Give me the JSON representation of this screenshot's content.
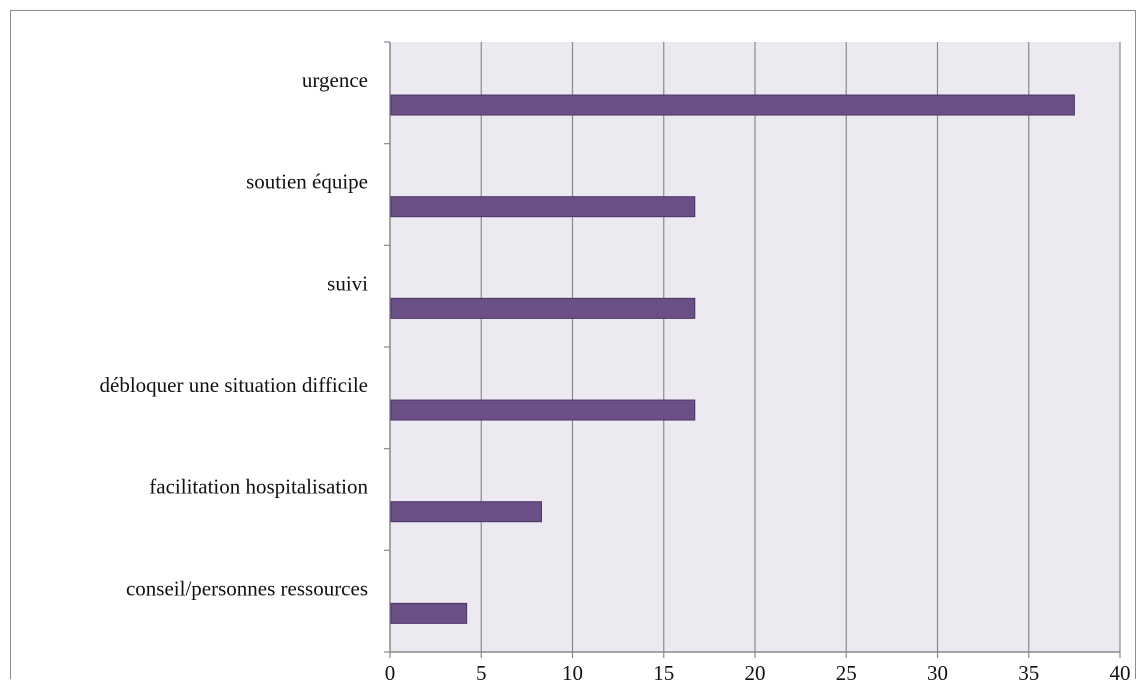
{
  "chart_data": {
    "type": "bar",
    "orientation": "horizontal",
    "categories": [
      "urgence",
      "soutien équipe",
      "suivi",
      "débloquer une situation difficile",
      "facilitation hospitalisation",
      "conseil/personnes ressources"
    ],
    "values": [
      37.5,
      16.7,
      16.7,
      16.7,
      8.3,
      4.2
    ],
    "title": "",
    "xlabel": "",
    "ylabel": "",
    "xlim": [
      0,
      40
    ],
    "xticks": [
      "0",
      "5",
      "10",
      "15",
      "20",
      "25",
      "30",
      "35",
      "40"
    ],
    "grid": "vertical",
    "legend": "none",
    "colors": {
      "bar_fill": "#6b5088",
      "bar_edge": "#4a3566",
      "plot_background": "#ece9f0",
      "gridline": "#8a8a8a"
    }
  }
}
